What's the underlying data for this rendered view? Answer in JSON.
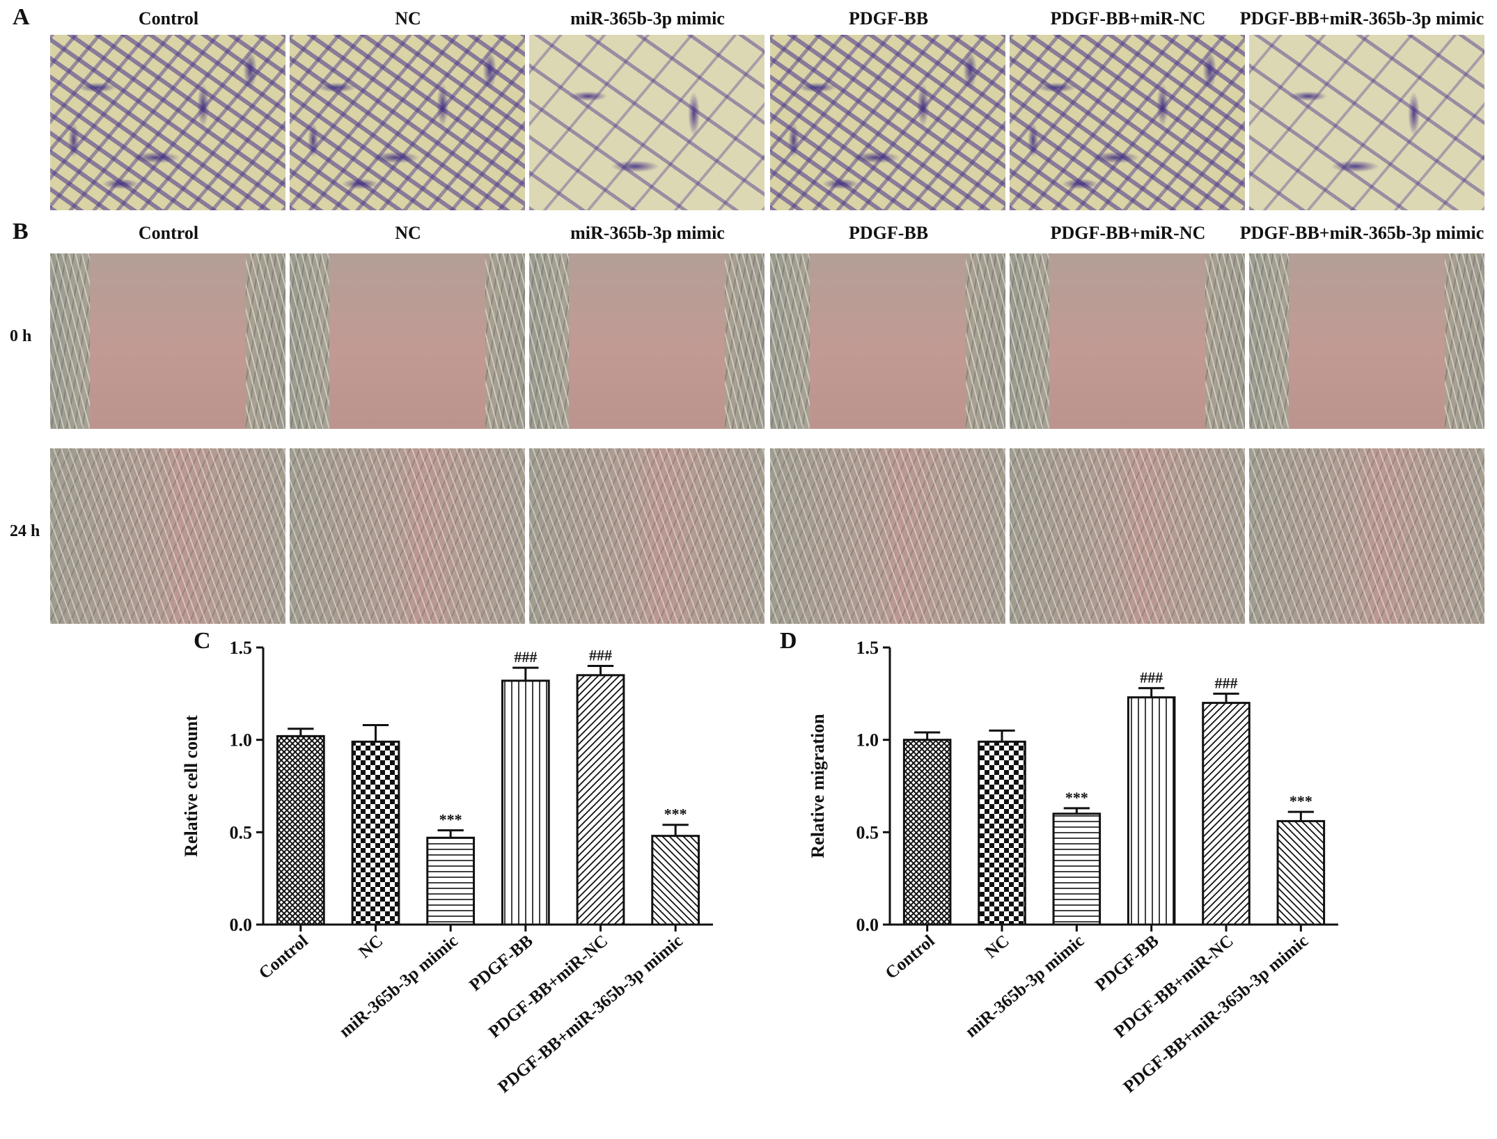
{
  "panels": {
    "a": {
      "letter": "A"
    },
    "b": {
      "letter": "B"
    },
    "c": {
      "letter": "C"
    },
    "d": {
      "letter": "D"
    }
  },
  "groups": [
    "Control",
    "NC",
    "miR-365b-3p mimic",
    "PDGF-BB",
    "PDGF-BB+miR-NC",
    "PDGF-BB+miR-365b-3p mimic"
  ],
  "row_labels": [
    "0 h",
    "24 h"
  ],
  "chart_data": [
    {
      "type": "bar",
      "panel": "C",
      "categories": [
        "Control",
        "NC",
        "miR-365b-3p mimic",
        "PDGF-BB",
        "PDGF-BB+miR-NC",
        "PDGF-BB+miR-365b-3p mimic"
      ],
      "values": [
        1.02,
        0.99,
        0.47,
        1.32,
        1.35,
        0.48
      ],
      "errors": [
        0.04,
        0.09,
        0.04,
        0.07,
        0.05,
        0.06
      ],
      "annotations": [
        "",
        "",
        "***",
        "###",
        "###",
        "***"
      ],
      "ylabel": "Relative cell count",
      "ylim": [
        0,
        1.5
      ],
      "yticks": [
        "0.0",
        "0.5",
        "1.0",
        "1.5"
      ],
      "patterns": [
        "crosshatch",
        "checker",
        "horizontal",
        "vertical",
        "diag-up",
        "diag-down"
      ]
    },
    {
      "type": "bar",
      "panel": "D",
      "categories": [
        "Control",
        "NC",
        "miR-365b-3p mimic",
        "PDGF-BB",
        "PDGF-BB+miR-NC",
        "PDGF-BB+miR-365b-3p mimic"
      ],
      "values": [
        1.0,
        0.99,
        0.6,
        1.23,
        1.2,
        0.56
      ],
      "errors": [
        0.04,
        0.06,
        0.03,
        0.05,
        0.05,
        0.05
      ],
      "annotations": [
        "",
        "",
        "***",
        "###",
        "###",
        "***"
      ],
      "ylabel": "Relative migration",
      "ylim": [
        0,
        1.5
      ],
      "yticks": [
        "0.0",
        "0.5",
        "1.0",
        "1.5"
      ],
      "patterns": [
        "crosshatch",
        "checker",
        "horizontal",
        "vertical",
        "diag-up",
        "diag-down"
      ]
    }
  ]
}
